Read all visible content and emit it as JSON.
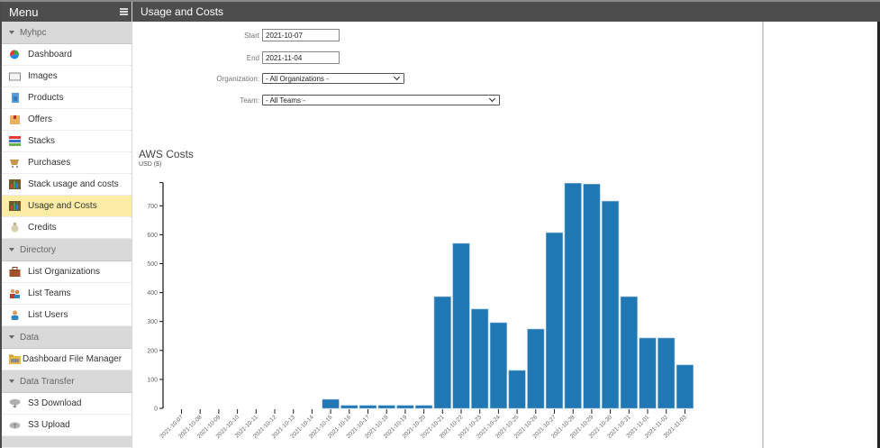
{
  "sidebar": {
    "title": "Menu",
    "groups": [
      {
        "label": "Myhpc",
        "items": [
          {
            "label": "Dashboard",
            "icon": "pie-chart-icon"
          },
          {
            "label": "Images",
            "icon": "image-icon"
          },
          {
            "label": "Products",
            "icon": "document-icon"
          },
          {
            "label": "Offers",
            "icon": "box-icon"
          },
          {
            "label": "Stacks",
            "icon": "stack-icon"
          },
          {
            "label": "Purchases",
            "icon": "shopping-icon"
          },
          {
            "label": "Stack usage and costs",
            "icon": "bar-chart-icon"
          },
          {
            "label": "Usage and Costs",
            "icon": "bar-chart-icon",
            "active": true
          },
          {
            "label": "Credits",
            "icon": "money-bag-icon"
          }
        ]
      },
      {
        "label": "Directory",
        "items": [
          {
            "label": "List Organizations",
            "icon": "briefcase-icon"
          },
          {
            "label": "List Teams",
            "icon": "team-icon"
          },
          {
            "label": "List Users",
            "icon": "user-icon"
          }
        ]
      },
      {
        "label": "Data",
        "items": [
          {
            "label": "Dashboard File Manager",
            "icon": "folder-icon"
          }
        ]
      },
      {
        "label": "Data Transfer",
        "items": [
          {
            "label": "S3 Download",
            "icon": "cloud-download-icon"
          },
          {
            "label": "S3 Upload",
            "icon": "cloud-upload-icon"
          }
        ]
      }
    ]
  },
  "header": {
    "title": "Usage and Costs"
  },
  "filters": {
    "start_label": "Start",
    "start_value": "2021-10-07",
    "end_label": "End",
    "end_value": "2021-11-04",
    "org_label": "Organization:",
    "org_value": "- All Organizations -",
    "team_label": "Team:",
    "team_value": "- All Teams -"
  },
  "colors": {
    "bar": "#1f77b4",
    "header_bg": "#4d4d4d",
    "active_item": "#fbeda6"
  },
  "chart_data": {
    "type": "bar",
    "title": "AWS Costs",
    "subtitle": "USD ($)",
    "xlabel": "",
    "ylabel": "USD ($)",
    "ylim": [
      0,
      780
    ],
    "yticks": [
      0,
      100,
      200,
      300,
      400,
      500,
      600,
      700
    ],
    "grid": false,
    "categories": [
      "2021-10-07",
      "2021-10-08",
      "2021-10-09",
      "2021-10-10",
      "2021-10-11",
      "2021-10-12",
      "2021-10-13",
      "2021-10-14",
      "2021-10-15",
      "2021-10-16",
      "2021-10-17",
      "2021-10-18",
      "2021-10-19",
      "2021-10-20",
      "2021-10-21",
      "2021-10-22",
      "2021-10-23",
      "2021-10-24",
      "2021-10-25",
      "2021-10-26",
      "2021-10-27",
      "2021-10-28",
      "2021-10-29",
      "2021-10-30",
      "2021-10-31",
      "2021-11-01",
      "2021-11-02",
      "2021-11-03"
    ],
    "values": [
      0,
      0,
      0,
      0,
      0,
      0,
      0,
      0,
      31,
      10,
      10,
      10,
      10,
      10,
      386,
      570,
      343,
      296,
      131,
      274,
      607,
      778,
      775,
      716,
      386,
      243,
      243,
      150
    ]
  }
}
